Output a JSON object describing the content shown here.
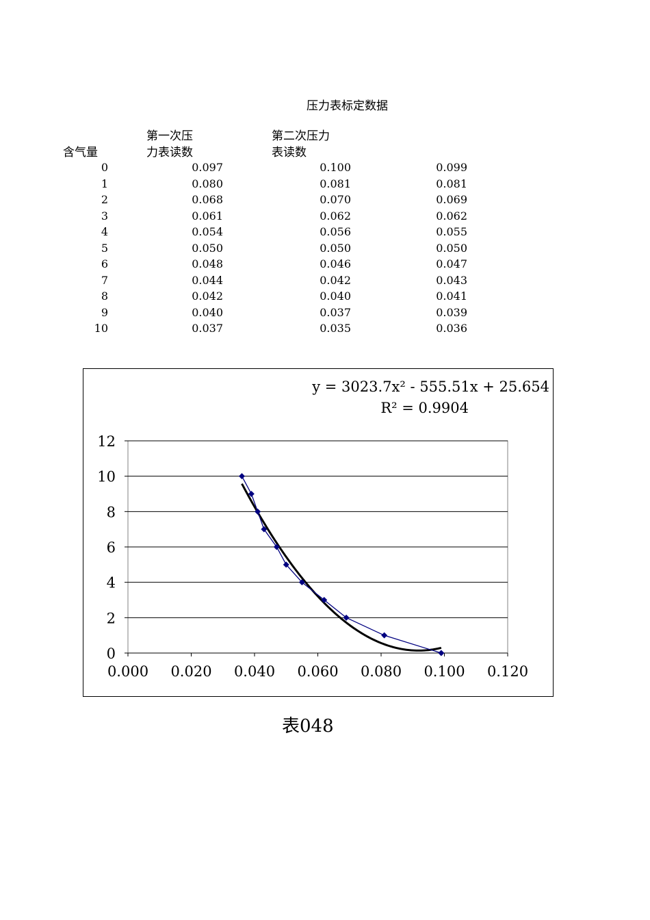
{
  "title": "压力表标定数据",
  "headers": {
    "col0": "含气量",
    "col1_line1": "第一次压",
    "col1_line2": "力表读数",
    "col2_line1": "第二次压力",
    "col2_line2": "表读数"
  },
  "rows": [
    [
      "0",
      "0.097",
      "0.100",
      "0.099"
    ],
    [
      "1",
      "0.080",
      "0.081",
      "0.081"
    ],
    [
      "2",
      "0.068",
      "0.070",
      "0.069"
    ],
    [
      "3",
      "0.061",
      "0.062",
      "0.062"
    ],
    [
      "4",
      "0.054",
      "0.056",
      "0.055"
    ],
    [
      "5",
      "0.050",
      "0.050",
      "0.050"
    ],
    [
      "6",
      "0.048",
      "0.046",
      "0.047"
    ],
    [
      "7",
      "0.044",
      "0.042",
      "0.043"
    ],
    [
      "8",
      "0.042",
      "0.040",
      "0.041"
    ],
    [
      "9",
      "0.040",
      "0.037",
      "0.039"
    ],
    [
      "10",
      "0.037",
      "0.035",
      "0.036"
    ]
  ],
  "chart_data": {
    "type": "scatter",
    "title": "",
    "xlabel": "",
    "ylabel": "",
    "xlim": [
      0,
      0.12
    ],
    "ylim": [
      0,
      12
    ],
    "x_ticks": [
      "0.000",
      "0.020",
      "0.040",
      "0.060",
      "0.080",
      "0.100",
      "0.120"
    ],
    "y_ticks": [
      "0",
      "2",
      "4",
      "6",
      "8",
      "10",
      "12"
    ],
    "grid": true,
    "series": [
      {
        "x": [
          0.099,
          0.081,
          0.069,
          0.062,
          0.055,
          0.05,
          0.047,
          0.043,
          0.041,
          0.039,
          0.036
        ],
        "y": [
          0,
          1,
          2,
          3,
          4,
          5,
          6,
          7,
          8,
          9,
          10
        ],
        "color": "#000080",
        "marker": "diamond"
      }
    ],
    "trendline": {
      "type": "polynomial",
      "coefficients": [
        3023.7,
        -555.51,
        25.654
      ],
      "x_range": [
        0.036,
        0.099
      ],
      "color": "#000000"
    },
    "equation_line1": "y = 3023.7x² - 555.51x + 25.654",
    "equation_line2": "R² = 0.9904"
  },
  "caption": "表048"
}
